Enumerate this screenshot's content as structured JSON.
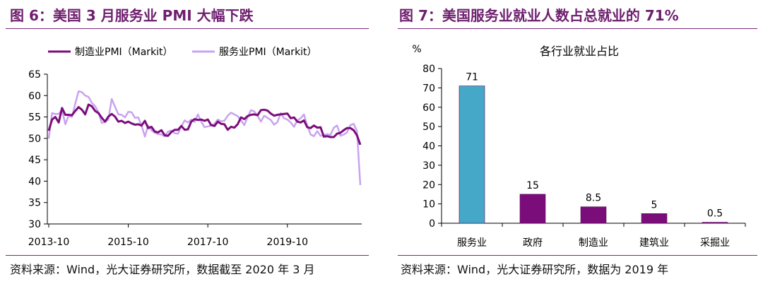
{
  "left": {
    "title": "图 6：美国 3 月服务业 PMI 大幅下跌",
    "source": "资料来源：Wind，光大证券研究所，数据截至 2020 年 3 月",
    "chart_data": {
      "type": "line",
      "title": "",
      "xlabel": "",
      "ylabel": "",
      "ylim": [
        30,
        65
      ],
      "yticks": [
        "30",
        "35",
        "40",
        "45",
        "50",
        "55",
        "60",
        "65"
      ],
      "xticks": [
        "2013-10",
        "2015-10",
        "2017-10",
        "2019-10"
      ],
      "legend_position": "top",
      "x_start": "2013-10",
      "series": [
        {
          "name": "制造业PMI（Markit）",
          "color": "#7b0d7b",
          "values": [
            51.8,
            54.4,
            55.0,
            53.7,
            57.1,
            55.5,
            55.5,
            55.4,
            56.4,
            57.3,
            56.7,
            55.6,
            57.9,
            57.5,
            56.4,
            55.9,
            54.8,
            53.9,
            55.1,
            55.7,
            55.1,
            53.9,
            54.1,
            53.6,
            53.9,
            53.5,
            53.2,
            53.3,
            53.0,
            54.1,
            52.4,
            52.7,
            51.6,
            51.4,
            51.9,
            50.7,
            50.6,
            51.5,
            52.0,
            52.0,
            52.9,
            52.0,
            52.1,
            53.9,
            54.5,
            54.3,
            54.4,
            54.1,
            54.4,
            53.1,
            52.9,
            53.9,
            53.4,
            53.3,
            52.0,
            52.7,
            52.5,
            53.3,
            54.9,
            54.5,
            55.2,
            55.5,
            55.6,
            55.4,
            56.6,
            56.7,
            56.5,
            55.8,
            55.3,
            55.5,
            55.6,
            55.7,
            55.8,
            54.7,
            54.9,
            53.9,
            53.7,
            54.2,
            52.6,
            52.4,
            53.0,
            52.5,
            52.6,
            50.4,
            50.5,
            50.3,
            50.3,
            51.1,
            51.3,
            51.9,
            52.4,
            52.4,
            51.9,
            50.7,
            48.5
          ]
        },
        {
          "name": "服务业PMI（Markit）",
          "color": "#c9a3f0",
          "values": [
            50.0,
            55.9,
            55.7,
            55.7,
            56.7,
            53.3,
            55.3,
            55.0,
            58.1,
            61.0,
            60.8,
            60.0,
            59.7,
            58.3,
            57.5,
            56.1,
            53.6,
            53.9,
            54.4,
            59.2,
            57.4,
            55.6,
            55.5,
            54.9,
            56.2,
            56.1,
            54.8,
            54.9,
            53.0,
            50.4,
            53.0,
            51.9,
            51.3,
            51.0,
            50.9,
            50.5,
            51.6,
            51.8,
            51.2,
            51.1,
            52.8,
            54.2,
            53.7,
            54.4,
            53.8,
            55.6,
            53.9,
            52.6,
            52.8,
            53.0,
            53.4,
            54.4,
            54.0,
            54.1,
            55.3,
            56.0,
            55.6,
            55.2,
            54.2,
            53.1,
            55.0,
            56.6,
            56.3,
            55.3,
            53.9,
            55.3,
            54.8,
            54.3,
            53.2,
            53.8,
            55.9,
            54.7,
            54.4,
            53.7,
            52.7,
            54.2,
            54.7,
            55.6,
            53.0,
            50.9,
            50.5,
            51.7,
            50.6,
            50.7,
            51.0,
            50.8,
            52.5,
            53.0,
            50.6,
            50.9,
            51.4,
            53.1,
            53.4,
            51.7,
            39.1
          ]
        }
      ]
    }
  },
  "right": {
    "title": "图 7：美国服务业就业人数占总就业的 71%",
    "source": "资料来源：Wind，光大证券研究所，数据为 2019 年",
    "chart_data": {
      "type": "bar",
      "title": "各行业就业占比",
      "unit_label": "%",
      "xlabel": "",
      "ylabel": "",
      "ylim": [
        0,
        80
      ],
      "yticks": [
        "0",
        "10",
        "20",
        "30",
        "40",
        "50",
        "60",
        "70",
        "80"
      ],
      "categories": [
        "服务业",
        "政府",
        "制造业",
        "建筑业",
        "采掘业"
      ],
      "values": [
        71,
        15,
        8.5,
        5,
        0.5
      ],
      "data_labels": [
        "71",
        "15",
        "8.5",
        "5",
        "0.5"
      ],
      "colors": [
        "#45a8c8",
        "#7b0d7b",
        "#7b0d7b",
        "#7b0d7b",
        "#7b0d7b"
      ]
    }
  }
}
